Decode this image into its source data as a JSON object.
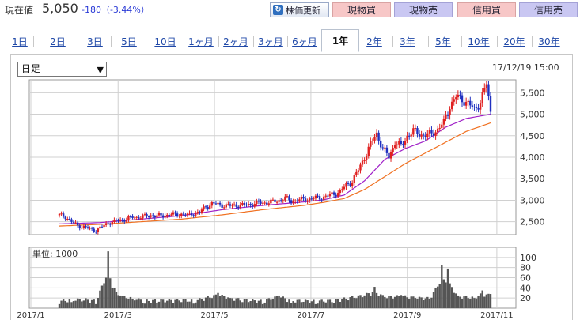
{
  "quote": {
    "label": "現在値",
    "price": "5,050",
    "change": "-180（-3.44%）"
  },
  "toolbar": {
    "refresh_label": "株価更新",
    "buttons": [
      {
        "label": "現物買",
        "color": "#f7c7c7"
      },
      {
        "label": "現物売",
        "color": "#c9c7f2"
      },
      {
        "label": "信用買",
        "color": "#f7c7c7"
      },
      {
        "label": "信用売",
        "color": "#c9c7f2"
      }
    ]
  },
  "tabs": [
    {
      "label": "1日"
    },
    {
      "label": "2日"
    },
    {
      "label": "3日"
    },
    {
      "label": "5日"
    },
    {
      "label": "10日"
    },
    {
      "label": "1ヶ月"
    },
    {
      "label": "2ヶ月"
    },
    {
      "label": "3ヶ月"
    },
    {
      "label": "6ヶ月"
    },
    {
      "label": "1年",
      "active": true
    },
    {
      "label": "2年"
    },
    {
      "label": "3年"
    },
    {
      "label": "5年"
    },
    {
      "label": "10年"
    },
    {
      "label": "20年"
    },
    {
      "label": "30年"
    }
  ],
  "chart_header": {
    "period_selected": "日足",
    "timestamp": "17/12/19 15:00"
  },
  "chart_data": [
    {
      "type": "candlestick",
      "ylim": [
        2200,
        5800
      ],
      "y_ticks": [
        "5,500",
        "5,000",
        "4,500",
        "4,000",
        "3,500",
        "3,000",
        "2,500"
      ],
      "y_tick_values": [
        5500,
        5000,
        4500,
        4000,
        3500,
        3000,
        2500
      ],
      "x_ticks": [
        "2017/1",
        "2017/3",
        "2017/5",
        "2017/7",
        "2017/9",
        "2017/11"
      ],
      "price_series": [
        [
          0,
          2650
        ],
        [
          3,
          2620
        ],
        [
          6,
          2500
        ],
        [
          9,
          2410
        ],
        [
          12,
          2380
        ],
        [
          15,
          2330
        ],
        [
          18,
          2300
        ],
        [
          21,
          2380
        ],
        [
          24,
          2480
        ],
        [
          27,
          2500
        ],
        [
          30,
          2540
        ],
        [
          33,
          2560
        ],
        [
          36,
          2600
        ],
        [
          39,
          2610
        ],
        [
          42,
          2620
        ],
        [
          45,
          2650
        ],
        [
          48,
          2630
        ],
        [
          51,
          2640
        ],
        [
          54,
          2670
        ],
        [
          57,
          2660
        ],
        [
          60,
          2680
        ],
        [
          63,
          2650
        ],
        [
          66,
          2700
        ],
        [
          69,
          2720
        ],
        [
          72,
          2850
        ],
        [
          75,
          2920
        ],
        [
          78,
          2900
        ],
        [
          81,
          2880
        ],
        [
          84,
          2870
        ],
        [
          87,
          2890
        ],
        [
          90,
          2880
        ],
        [
          93,
          2900
        ],
        [
          96,
          2920
        ],
        [
          99,
          2940
        ],
        [
          102,
          2950
        ],
        [
          105,
          2960
        ],
        [
          108,
          3000
        ],
        [
          111,
          3050
        ],
        [
          114,
          2980
        ],
        [
          117,
          3000
        ],
        [
          120,
          3020
        ],
        [
          123,
          3030
        ],
        [
          126,
          3050
        ],
        [
          129,
          3070
        ],
        [
          132,
          3100
        ],
        [
          135,
          3150
        ],
        [
          138,
          3200
        ],
        [
          141,
          3350
        ],
        [
          144,
          3450
        ],
        [
          147,
          3700
        ],
        [
          150,
          4000
        ],
        [
          153,
          4300
        ],
        [
          156,
          4550
        ],
        [
          159,
          4200
        ],
        [
          162,
          4000
        ],
        [
          165,
          4350
        ],
        [
          168,
          4250
        ],
        [
          171,
          4500
        ],
        [
          174,
          4600
        ],
        [
          177,
          4550
        ],
        [
          180,
          4500
        ],
        [
          183,
          4550
        ],
        [
          186,
          4650
        ],
        [
          189,
          4800
        ],
        [
          192,
          5200
        ],
        [
          195,
          5400
        ],
        [
          198,
          5350
        ],
        [
          201,
          5250
        ],
        [
          204,
          5100
        ],
        [
          207,
          5300
        ],
        [
          210,
          5700
        ],
        [
          212,
          5050
        ]
      ],
      "ma_short": [
        [
          0,
          2450
        ],
        [
          20,
          2480
        ],
        [
          40,
          2560
        ],
        [
          60,
          2640
        ],
        [
          80,
          2780
        ],
        [
          100,
          2880
        ],
        [
          120,
          2960
        ],
        [
          130,
          3010
        ],
        [
          140,
          3120
        ],
        [
          150,
          3450
        ],
        [
          160,
          3950
        ],
        [
          170,
          4200
        ],
        [
          180,
          4380
        ],
        [
          190,
          4700
        ],
        [
          200,
          4900
        ],
        [
          212,
          5000
        ]
      ],
      "ma_long": [
        [
          0,
          2400
        ],
        [
          20,
          2440
        ],
        [
          40,
          2500
        ],
        [
          60,
          2560
        ],
        [
          80,
          2660
        ],
        [
          100,
          2780
        ],
        [
          120,
          2880
        ],
        [
          130,
          2950
        ],
        [
          140,
          3040
        ],
        [
          150,
          3250
        ],
        [
          160,
          3550
        ],
        [
          170,
          3850
        ],
        [
          180,
          4100
        ],
        [
          190,
          4350
        ],
        [
          200,
          4600
        ],
        [
          212,
          4800
        ]
      ]
    },
    {
      "type": "bar",
      "label": "単位: 1000",
      "ylim": [
        0,
        120
      ],
      "y_ticks": [
        "100",
        "80",
        "60",
        "40",
        "20"
      ],
      "y_tick_values": [
        100,
        80,
        60,
        40,
        20
      ],
      "volume_peaks": [
        [
          0,
          8
        ],
        [
          6,
          12
        ],
        [
          12,
          15
        ],
        [
          18,
          8
        ],
        [
          24,
          112
        ],
        [
          27,
          40
        ],
        [
          30,
          25
        ],
        [
          36,
          18
        ],
        [
          42,
          9
        ],
        [
          48,
          10
        ],
        [
          60,
          12
        ],
        [
          66,
          9
        ],
        [
          78,
          30
        ],
        [
          84,
          20
        ],
        [
          90,
          12
        ],
        [
          100,
          8
        ],
        [
          108,
          25
        ],
        [
          114,
          10
        ],
        [
          126,
          8
        ],
        [
          135,
          10
        ],
        [
          141,
          18
        ],
        [
          148,
          26
        ],
        [
          155,
          42
        ],
        [
          160,
          22
        ],
        [
          168,
          26
        ],
        [
          175,
          20
        ],
        [
          182,
          18
        ],
        [
          188,
          85
        ],
        [
          191,
          78
        ],
        [
          196,
          25
        ],
        [
          204,
          20
        ],
        [
          208,
          35
        ],
        [
          212,
          28
        ]
      ]
    }
  ],
  "colors": {
    "up_candle": "#e02020",
    "down_candle": "#2030c0",
    "ma_short": "#a020c8",
    "ma_long": "#f07020",
    "volume": "#555555",
    "grid": "#d0d0d0"
  }
}
